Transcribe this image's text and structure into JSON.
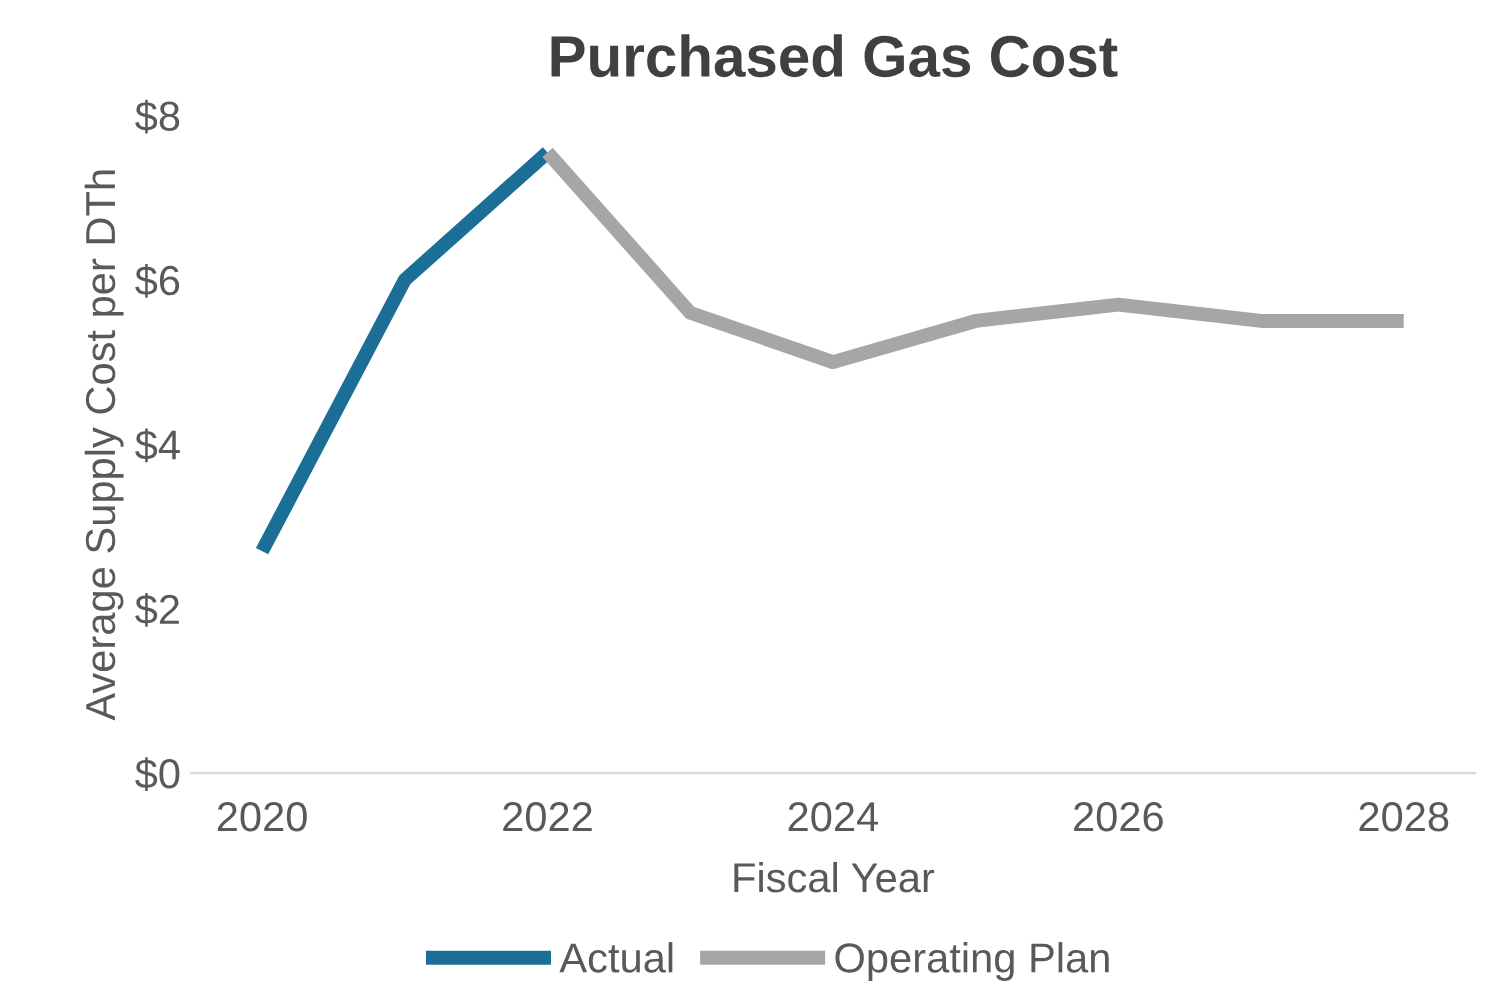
{
  "chart_data": {
    "type": "line",
    "title": "Purchased Gas Cost",
    "xlabel": "Fiscal Year",
    "ylabel": "Average Supply Cost per DTh",
    "series": [
      {
        "name": "Actual",
        "color": "#1b6f97",
        "x": [
          2020,
          2021,
          2022
        ],
        "values": [
          2.7,
          6.0,
          7.55
        ]
      },
      {
        "name": "Operating Plan",
        "color": "#a6a6a6",
        "x": [
          2022,
          2023,
          2024,
          2025,
          2026,
          2027,
          2028
        ],
        "values": [
          7.55,
          5.6,
          5.0,
          5.5,
          5.7,
          5.5,
          5.5
        ]
      }
    ],
    "xlim": [
      2019.5,
      2028.5
    ],
    "xticks": [
      2020,
      2022,
      2024,
      2026,
      2028
    ],
    "ylim": [
      0,
      8
    ],
    "yticks": [
      {
        "value": 0,
        "label": "$0"
      },
      {
        "value": 2,
        "label": "$2"
      },
      {
        "value": 4,
        "label": "$4"
      },
      {
        "value": 6,
        "label": "$6"
      },
      {
        "value": 8,
        "label": "$8"
      }
    ],
    "grid": false,
    "legend": "bottom",
    "marker": "none",
    "line_style": "solid"
  }
}
